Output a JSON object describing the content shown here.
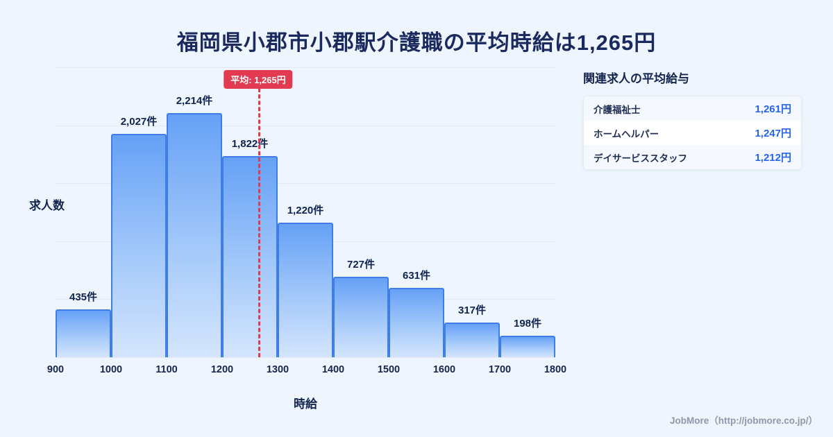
{
  "title": "福岡県小郡市小郡駅介護職の平均時給は1,265円",
  "chart_data": {
    "type": "bar",
    "bin_edges": [
      900,
      1000,
      1100,
      1200,
      1300,
      1400,
      1500,
      1600,
      1700,
      1800
    ],
    "x_ticks": [
      "900",
      "1000",
      "1100",
      "1200",
      "1300",
      "1400",
      "1500",
      "1600",
      "1700",
      "1800"
    ],
    "values": [
      435,
      2027,
      2214,
      1822,
      1220,
      727,
      631,
      317,
      198
    ],
    "value_labels": [
      "435件",
      "2,027件",
      "2,214件",
      "1,822件",
      "1,220件",
      "727件",
      "631件",
      "317件",
      "198件"
    ],
    "xlabel": "時給",
    "ylabel": "求人数",
    "average": 1265,
    "average_label": "平均: 1,265円",
    "grid": "horizontal",
    "legend": "none"
  },
  "side_panel": {
    "heading": "関連求人の平均給与",
    "rows": [
      {
        "label": "介護福祉士",
        "value": "1,261円"
      },
      {
        "label": "ホームヘルパー",
        "value": "1,247円"
      },
      {
        "label": "デイサービススタッフ",
        "value": "1,212円"
      }
    ]
  },
  "footer": {
    "credit": "JobMore（http://jobmore.co.jp/）"
  },
  "colors": {
    "background": "#eff5fd",
    "title_text": "#1b2a5e",
    "bar_border": "#3e7ee6",
    "bar_fill_top": "#66a1f6",
    "bar_fill_bottom": "#d4e5fd",
    "average_accent": "#e23a50",
    "value_text": "#2563eb"
  }
}
